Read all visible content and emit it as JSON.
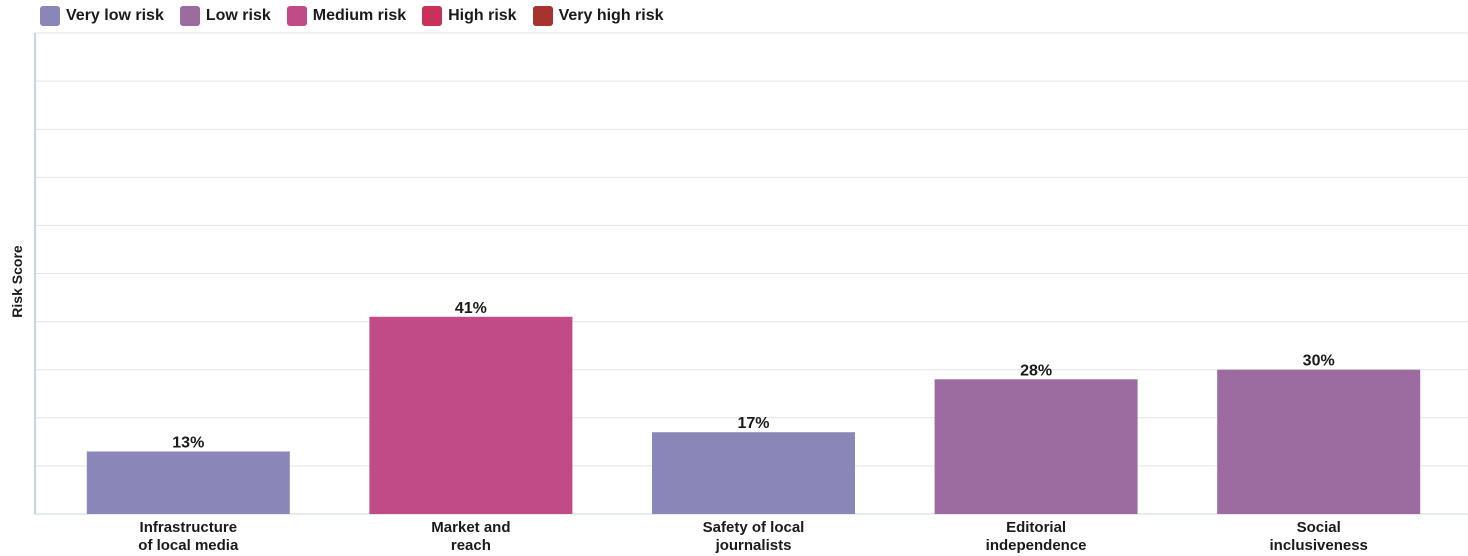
{
  "legend": [
    {
      "label": "Very low risk",
      "color": "#8a86b8"
    },
    {
      "label": "Low risk",
      "color": "#9c6ba0"
    },
    {
      "label": "Medium risk",
      "color": "#c04b86"
    },
    {
      "label": "High risk",
      "color": "#c8325a"
    },
    {
      "label": "Very high risk",
      "color": "#a8322e"
    }
  ],
  "chart_data": {
    "type": "bar",
    "title": "",
    "xlabel": "",
    "ylabel": "Risk Score",
    "ylim": [
      0,
      100
    ],
    "grid": true,
    "legend_position": "top-left",
    "categories": [
      [
        "Infrastructure",
        "of local media"
      ],
      [
        "Market and",
        "reach"
      ],
      [
        "Safety of local",
        "journalists"
      ],
      [
        "Editorial",
        "independence"
      ],
      [
        "Social",
        "inclusiveness"
      ]
    ],
    "values": [
      13,
      41,
      17,
      28,
      30
    ],
    "value_labels": [
      "13%",
      "41%",
      "17%",
      "28%",
      "30%"
    ],
    "bar_colors": [
      "#8a86b8",
      "#c04b86",
      "#8a86b8",
      "#9c6ba0",
      "#9c6ba0"
    ],
    "risk_levels": [
      "Very low risk",
      "Medium risk",
      "Very low risk",
      "Low risk",
      "Low risk"
    ]
  }
}
